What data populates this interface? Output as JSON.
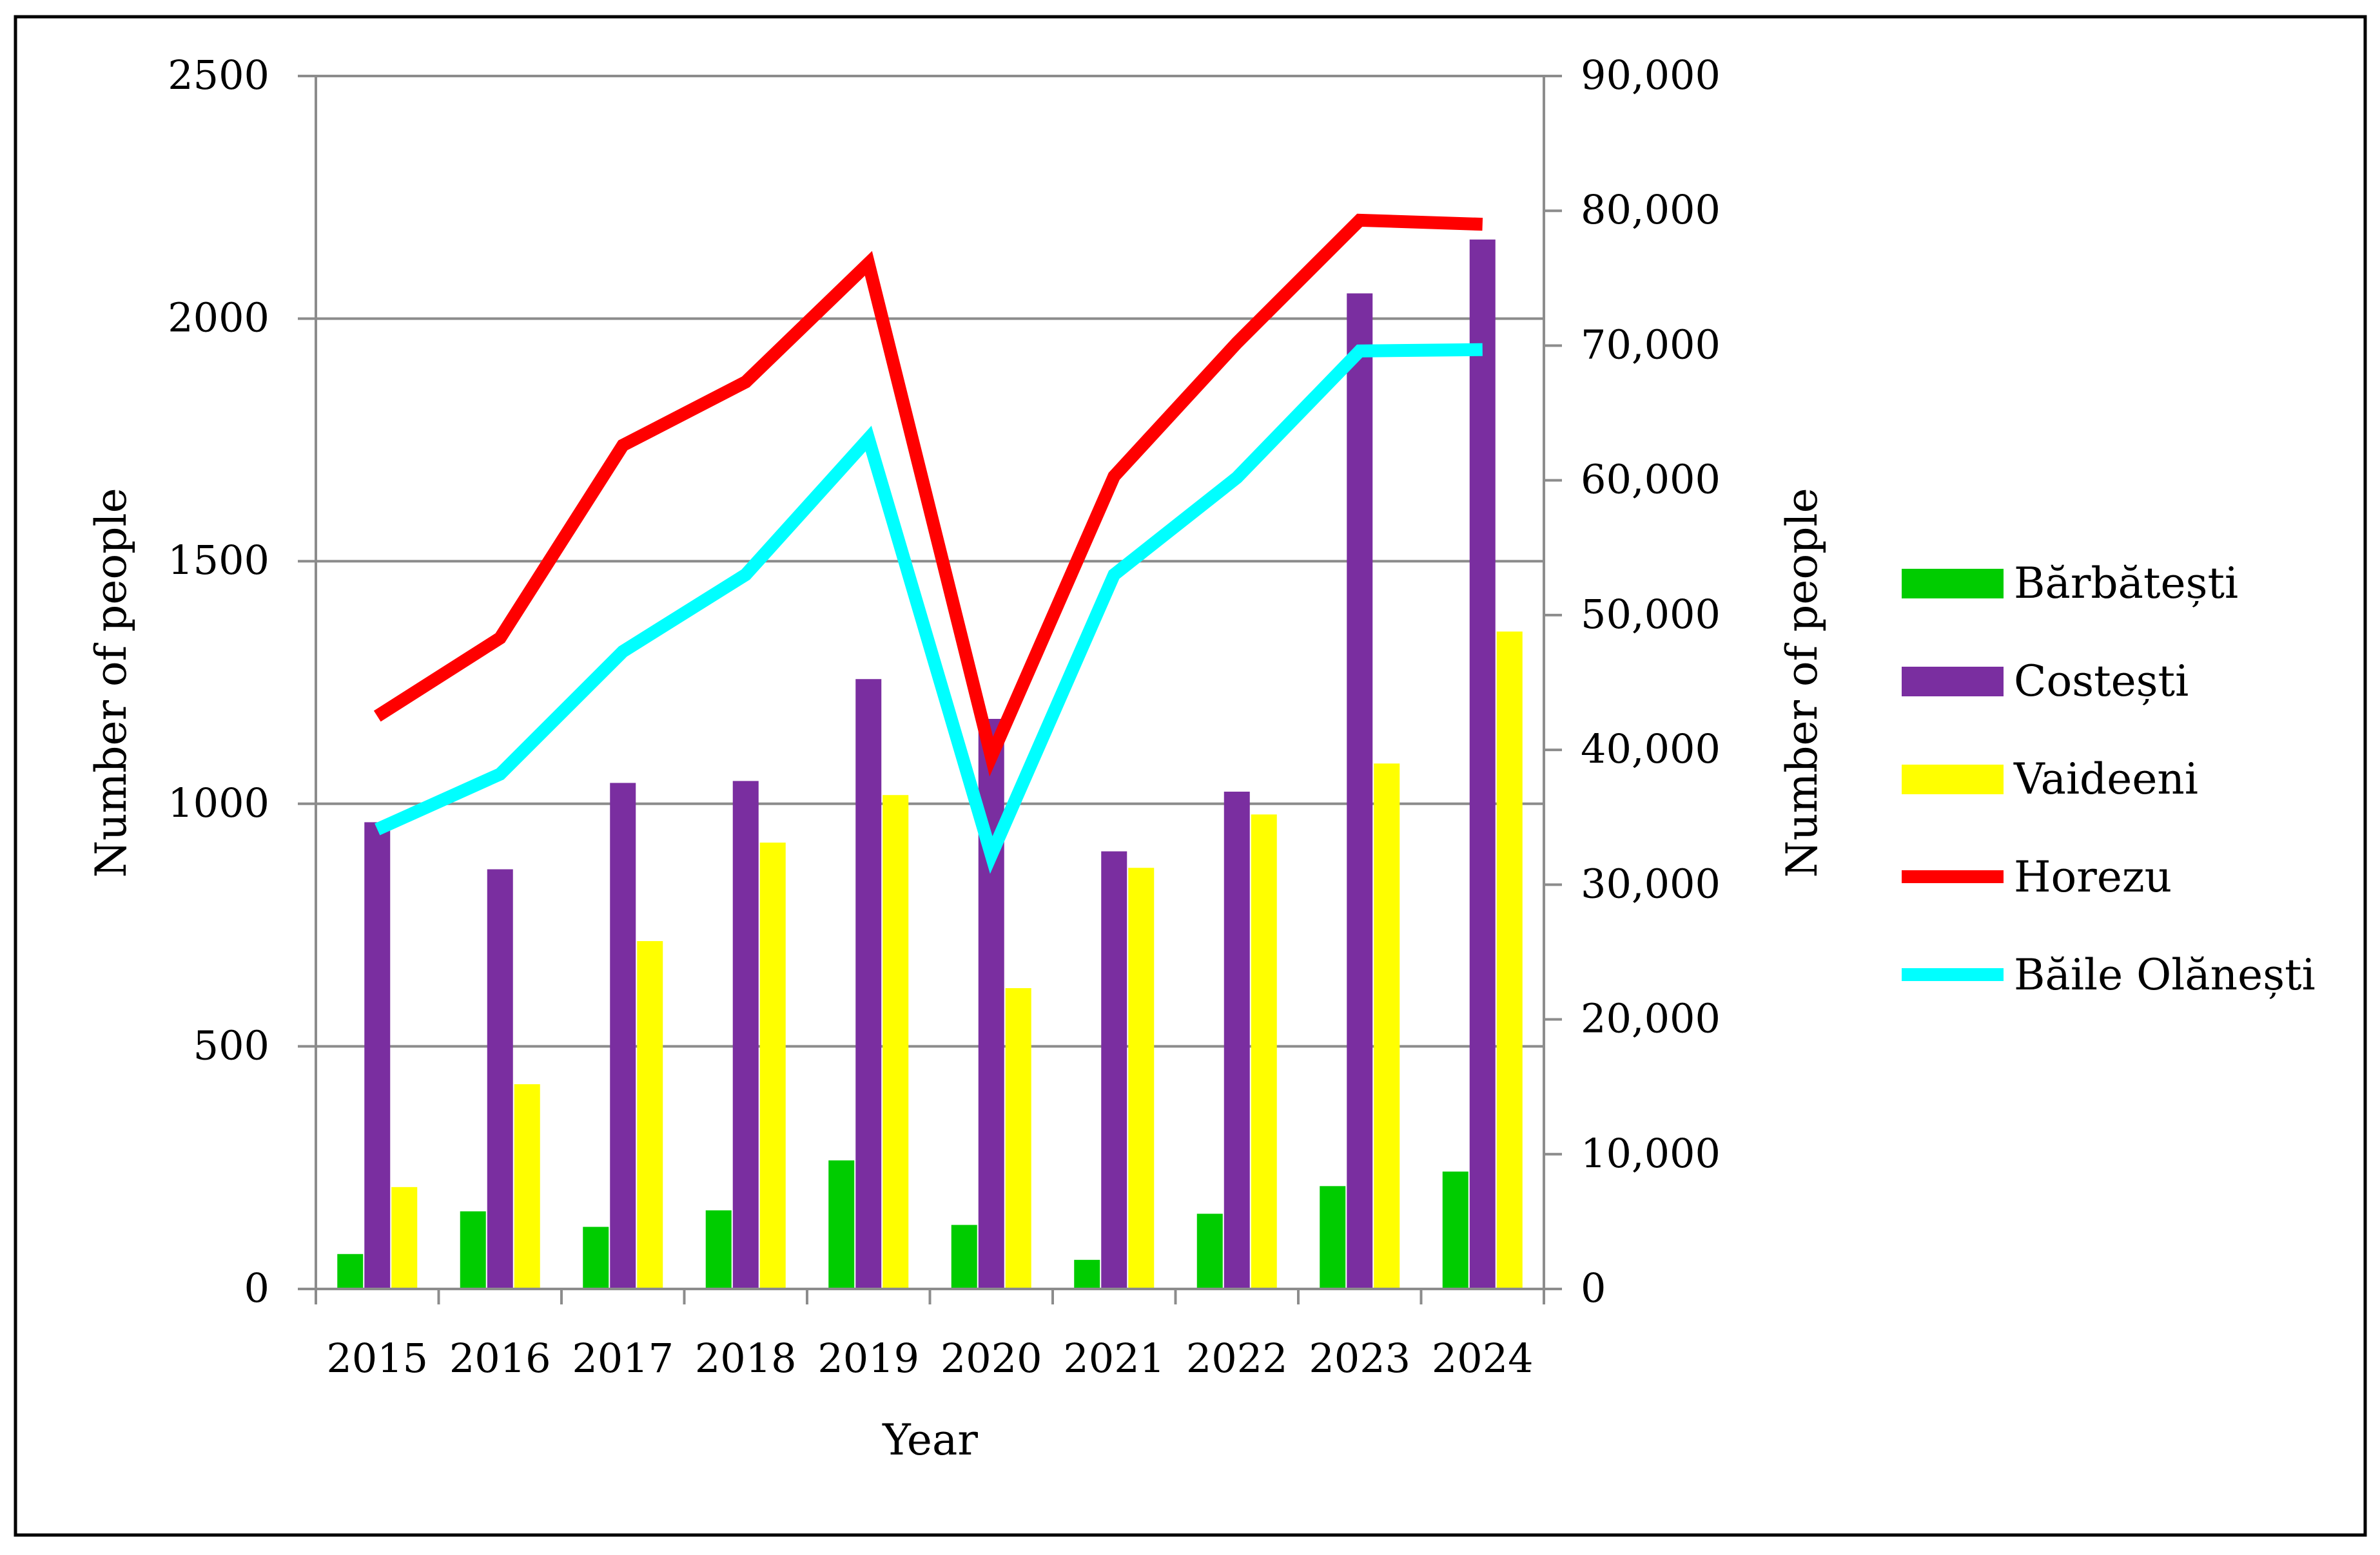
{
  "chart_data": {
    "type": "bar",
    "title": "",
    "xlabel": "Year",
    "ylabel_left": "Number of people",
    "ylabel_right": "Number of people",
    "categories": [
      "2015",
      "2016",
      "2017",
      "2018",
      "2019",
      "2020",
      "2021",
      "2022",
      "2023",
      "2024"
    ],
    "left_axis": {
      "ylim": [
        0,
        2500
      ],
      "ticks": [
        0,
        500,
        1000,
        1500,
        2000,
        2500
      ],
      "tick_labels": [
        "0",
        "500",
        "1000",
        "1500",
        "2000",
        "2500"
      ]
    },
    "right_axis": {
      "ylim": [
        0,
        90000
      ],
      "ticks": [
        0,
        10000,
        20000,
        30000,
        40000,
        50000,
        60000,
        70000,
        80000,
        90000
      ],
      "tick_labels": [
        "0",
        "10,000",
        "20,000",
        "30,000",
        "40,000",
        "50,000",
        "60,000",
        "70,000",
        "80,000",
        "90,000"
      ]
    },
    "grid": true,
    "legend_position": "right",
    "bar_series": [
      {
        "name": "Bărbătești",
        "color": "#00cc00",
        "axis": "left",
        "values": [
          72,
          160,
          128,
          162,
          265,
          132,
          60,
          155,
          212,
          242
        ]
      },
      {
        "name": "Costești",
        "color": "#7a2ea0",
        "axis": "left",
        "values": [
          962,
          865,
          1043,
          1047,
          1257,
          1175,
          902,
          1025,
          2052,
          2163
        ]
      },
      {
        "name": "Vaideeni",
        "color": "#ffff00",
        "axis": "left",
        "values": [
          210,
          422,
          717,
          920,
          1018,
          620,
          868,
          978,
          1083,
          1355
        ]
      }
    ],
    "line_series": [
      {
        "name": "Horezu",
        "color": "#ff0000",
        "axis": "right",
        "values": [
          42500,
          48300,
          62600,
          67300,
          76100,
          39500,
          60300,
          70200,
          79300,
          79000
        ]
      },
      {
        "name": "Băile Olănești",
        "color": "#00ffff",
        "axis": "right",
        "values": [
          34100,
          38200,
          47300,
          53000,
          63100,
          32200,
          53000,
          60200,
          69600,
          69700
        ]
      }
    ]
  }
}
